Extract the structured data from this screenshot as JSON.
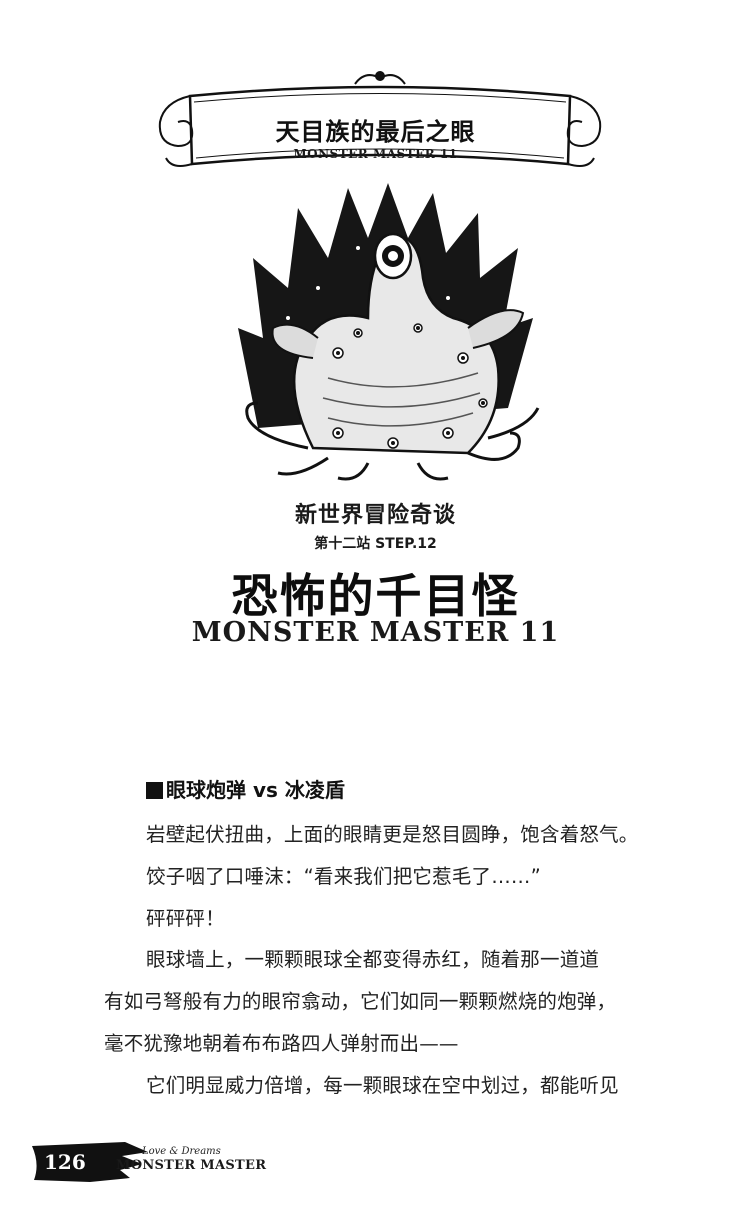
{
  "header": {
    "title": "天目族的最后之眼",
    "subtitle": "MONSTER MASTER 11"
  },
  "chapter": {
    "series": "新世界冒险奇谈",
    "step": "第十二站 STEP.12",
    "title": "恐怖的千目怪",
    "subtitle": "MONSTER MASTER 11"
  },
  "section": {
    "heading": "眼球炮弹 vs 冰凌盾"
  },
  "body": {
    "lines": [
      "岩壁起伏扭曲，上面的眼睛更是怒目圆睁，饱含着怒气。",
      "饺子咽了口唾沫：“看来我们把它惹毛了……”",
      "砰砰砰！",
      "眼球墙上，一颗颗眼球全都变得赤红，随着那一道道",
      "有如弓弩般有力的眼帘翕动，它们如同一颗颗燃烧的炮弹，",
      "毫不犹豫地朝着布布路四人弹射而出——",
      "它们明显威力倍增，每一颗眼球在空中划过，都能听见"
    ]
  },
  "footer": {
    "page_number": "126",
    "tagline": "Love & Dreams",
    "brand": "MONSTER MASTER"
  }
}
